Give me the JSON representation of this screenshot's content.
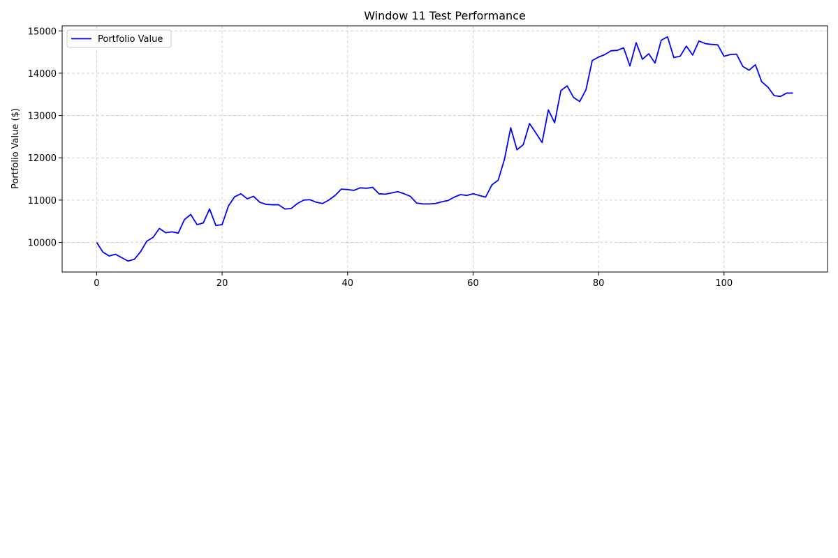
{
  "chart_data": {
    "type": "line",
    "title": "Window 11 Test Performance",
    "xlabel": "",
    "ylabel": "Portfolio Value ($)",
    "xlim": [
      -5.5,
      116.5
    ],
    "ylim": [
      9300,
      15120
    ],
    "xticks": [
      0,
      20,
      40,
      60,
      80,
      100
    ],
    "yticks": [
      10000,
      11000,
      12000,
      13000,
      14000,
      15000
    ],
    "grid": true,
    "legend_position": "upper-left",
    "series": [
      {
        "name": "Portfolio Value",
        "color": "#0000ff",
        "x": [
          0,
          1,
          2,
          3,
          4,
          5,
          6,
          7,
          8,
          9,
          10,
          11,
          12,
          13,
          14,
          15,
          16,
          17,
          18,
          19,
          20,
          21,
          22,
          23,
          24,
          25,
          26,
          27,
          28,
          29,
          30,
          31,
          32,
          33,
          34,
          35,
          36,
          37,
          38,
          39,
          40,
          41,
          42,
          43,
          44,
          45,
          46,
          47,
          48,
          49,
          50,
          51,
          52,
          53,
          54,
          55,
          56,
          57,
          58,
          59,
          60,
          61,
          62,
          63,
          64,
          65,
          66,
          67,
          68,
          69,
          70,
          71,
          72,
          73,
          74,
          75,
          76,
          77,
          78,
          79,
          80,
          81,
          82,
          83,
          84,
          85,
          86,
          87,
          88,
          89,
          90,
          91,
          92,
          93,
          94,
          95,
          96,
          97,
          98,
          99,
          100,
          101,
          102,
          103,
          104,
          105,
          106,
          107,
          108,
          109,
          110,
          111
        ],
        "values": [
          10000,
          9770,
          9680,
          9720,
          9640,
          9560,
          9600,
          9780,
          10030,
          10120,
          10330,
          10230,
          10250,
          10220,
          10540,
          10660,
          10420,
          10460,
          10790,
          10400,
          10420,
          10860,
          11080,
          11150,
          11030,
          11090,
          10950,
          10900,
          10890,
          10890,
          10790,
          10800,
          10920,
          11000,
          11010,
          10950,
          10920,
          11000,
          11110,
          11260,
          11250,
          11230,
          11290,
          11280,
          11300,
          11150,
          11140,
          11170,
          11200,
          11150,
          11090,
          10930,
          10910,
          10910,
          10920,
          10960,
          10990,
          11070,
          11130,
          11110,
          11150,
          11110,
          11070,
          11360,
          11470,
          11960,
          12710,
          12190,
          12310,
          12810,
          12590,
          12360,
          13130,
          12830,
          13590,
          13700,
          13430,
          13330,
          13610,
          14300,
          14380,
          14440,
          14530,
          14540,
          14600,
          14170,
          14720,
          14330,
          14460,
          14240,
          14780,
          14860,
          14370,
          14400,
          14640,
          14430,
          14760,
          14700,
          14680,
          14670,
          14400,
          14440,
          14450,
          14160,
          14070,
          14200,
          13800,
          13670,
          13470,
          13450,
          13530,
          13530
        ]
      }
    ]
  }
}
